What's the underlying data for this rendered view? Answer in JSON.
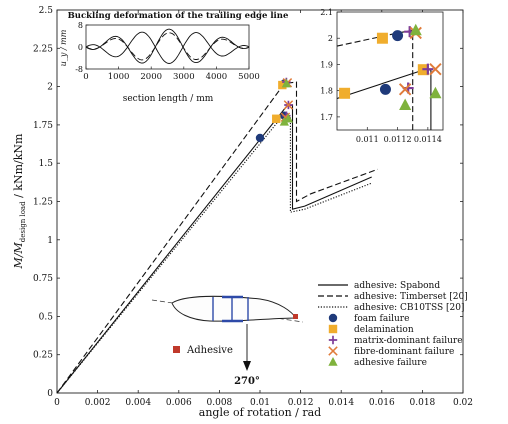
{
  "chart_data": {
    "type": "line",
    "xlabel": "angle of rotation / rad",
    "ylabel": "M/M",
    "ylabel_sub": "design load",
    "ylabel_tail": " / kNm/kNm",
    "xlim": [
      0,
      0.02
    ],
    "ylim": [
      0,
      2.5
    ],
    "x_ticks": [
      "0",
      "0.002",
      "0.004",
      "0.006",
      "0.008",
      "0.01",
      "0.012",
      "0.014",
      "0.016",
      "0.018",
      "0.02"
    ],
    "y_ticks": [
      "0",
      "0.25",
      "0.5",
      "0.75",
      "1",
      "1.25",
      "1.5",
      "1.75",
      "2",
      "2.25",
      "2.5"
    ],
    "grid": false,
    "legend_position": "bottom-right",
    "series": [
      {
        "name": "adhesive: Spabond",
        "style": "solid",
        "points": [
          [
            0,
            0
          ],
          [
            0.0113,
            1.87
          ],
          [
            0.0116,
            1.88
          ],
          [
            0.0116,
            1.2
          ],
          [
            0.0122,
            1.22
          ],
          [
            0.0155,
            1.41
          ]
        ]
      },
      {
        "name": "adhesive: Timberset [20]",
        "style": "dashed",
        "points": [
          [
            0,
            0
          ],
          [
            0.0112,
            2.02
          ],
          [
            0.0118,
            2.03
          ],
          [
            0.0118,
            1.25
          ],
          [
            0.0125,
            1.3
          ],
          [
            0.0158,
            1.46
          ]
        ]
      },
      {
        "name": "adhesive: CB10TSS [20]",
        "style": "dotted",
        "points": [
          [
            0,
            0
          ],
          [
            0.011,
            1.79
          ],
          [
            0.0115,
            1.8
          ],
          [
            0.0115,
            1.18
          ],
          [
            0.0122,
            1.2
          ],
          [
            0.0155,
            1.37
          ]
        ]
      }
    ],
    "markers": [
      {
        "name": "foam failure",
        "shape": "circle",
        "color": "#1f3a7a",
        "points": [
          [
            0.01,
            1.665
          ],
          [
            0.0112,
            1.81
          ],
          [
            0.0112,
            2.02
          ]
        ]
      },
      {
        "name": "delamination",
        "shape": "square",
        "color": "#f0ad2d",
        "points": [
          [
            0.0108,
            1.79
          ],
          [
            0.0111,
            2.01
          ]
        ]
      },
      {
        "name": "matrix-dominant failure",
        "shape": "plus",
        "color": "#7d3c98",
        "points": [
          [
            0.0113,
            1.81
          ],
          [
            0.0114,
            1.88
          ],
          [
            0.0113,
            2.03
          ]
        ]
      },
      {
        "name": "fibre-dominant failure",
        "shape": "x",
        "color": "#e07b39",
        "points": [
          [
            0.01125,
            1.8
          ],
          [
            0.0114,
            1.88
          ],
          [
            0.01135,
            2.025
          ]
        ]
      },
      {
        "name": "adhesive failure",
        "shape": "triangle",
        "color": "#7fb23c",
        "points": [
          [
            0.0112,
            1.77
          ],
          [
            0.0114,
            1.79
          ],
          [
            0.0113,
            2.02
          ]
        ]
      }
    ],
    "inset_buckling": {
      "title": "Buckling deformation of the trailing edge line",
      "xlabel": "section length / mm",
      "ylabel": "u_y / mm",
      "xlim": [
        0,
        5000
      ],
      "ylim": [
        -8,
        8
      ],
      "x_ticks": [
        "0",
        "1000",
        "2000",
        "3000",
        "4000",
        "5000"
      ],
      "y_ticks": [
        "8",
        "0",
        "-8"
      ]
    },
    "inset_zoom": {
      "xlim": [
        0.0108,
        0.0115
      ],
      "ylim": [
        1.65,
        2.1
      ],
      "x_ticks": [
        "0.011",
        "0.0112",
        "0.0114"
      ],
      "y_ticks": [
        "1.7",
        "1.8",
        "1.9",
        "2",
        "2.1"
      ]
    },
    "annotations": {
      "adhesive_label": "Adhesive",
      "angle_label": "270°"
    }
  }
}
